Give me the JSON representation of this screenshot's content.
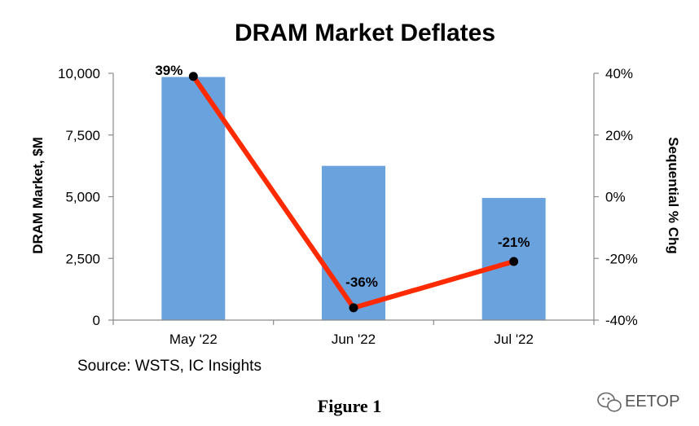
{
  "chart_data": {
    "type": "bar",
    "title": "DRAM Market Deflates",
    "categories": [
      "May '22",
      "Jun '22",
      "Jul '22"
    ],
    "series": [
      {
        "type": "bar",
        "axis": "left",
        "values": [
          9850,
          6250,
          4950
        ]
      },
      {
        "type": "line",
        "axis": "right",
        "values": [
          39,
          -36,
          -21
        ],
        "labels": [
          "39%",
          "-36%",
          "-21%"
        ]
      }
    ],
    "ylabel": "DRAM Market, $M",
    "ylim": [
      0,
      10000
    ],
    "yticks": [
      0,
      2500,
      5000,
      7500,
      10000
    ],
    "ytick_labels": [
      "0",
      "2,500",
      "5,000",
      "7,500",
      "10,000"
    ],
    "y2label": "Sequential % Chg",
    "y2lim": [
      -40,
      40
    ],
    "y2ticks": [
      -40,
      -20,
      0,
      20,
      40
    ],
    "y2tick_labels": [
      "-40%",
      "-20%",
      "0%",
      "20%",
      "40%"
    ],
    "grid": false,
    "colors": {
      "bar": "#6aa2de",
      "line": "#ff2a00",
      "marker": "#000000"
    }
  },
  "source": "Source:  WSTS, IC Insights",
  "caption": "Figure 1",
  "watermark": {
    "icon": "wechat-icon",
    "text": "EETOP"
  }
}
